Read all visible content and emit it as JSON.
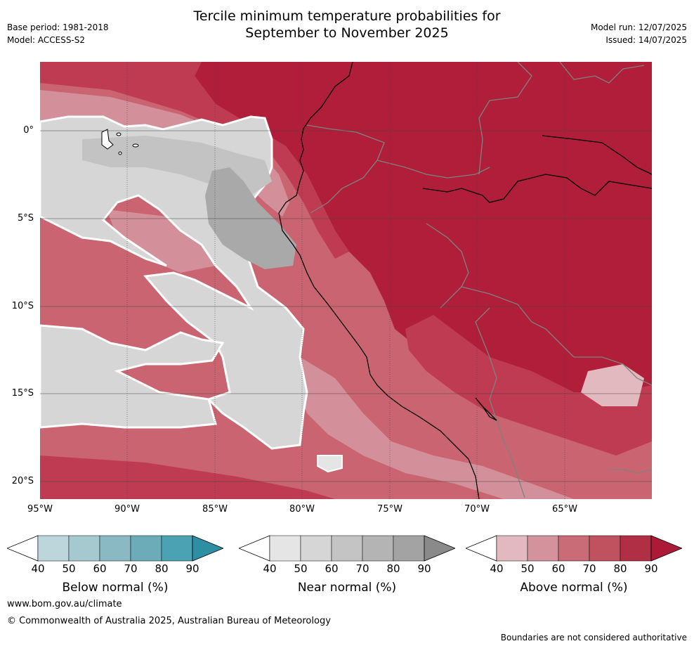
{
  "header": {
    "title_line1": "Tercile minimum temperature probabilities for",
    "title_line2": "September to November 2025",
    "base_period": "Base period: 1981-2018",
    "model": "Model: ACCESS-S2",
    "model_run": "Model run: 12/07/2025",
    "issued": "Issued: 14/07/2025"
  },
  "map": {
    "lat_ticks": [
      "0°",
      "5°S",
      "10°S",
      "15°S",
      "20°S"
    ],
    "lon_ticks": [
      "95°W",
      "90°W",
      "85°W",
      "80°W",
      "75°W",
      "70°W",
      "65°W"
    ],
    "category_colors": {
      "above_90": "#b01e3a",
      "above_80": "#bf3b52",
      "above_70": "#c96470",
      "above_60": "#d4909a",
      "above_50": "#e2b9be",
      "near_40": "#e5e5e5",
      "near_50": "#d6d6d6",
      "near_60": "#c3c3c3",
      "near_70": "#a9a9a9"
    }
  },
  "colorbars": [
    {
      "label": "Below normal (%)",
      "ticks": [
        "40",
        "50",
        "60",
        "70",
        "80",
        "90"
      ],
      "colors": [
        "#ffffff",
        "#bcd6dc",
        "#a6c8cf",
        "#8bb9c3",
        "#6bacb8",
        "#4aa2b2",
        "#2e8ea2"
      ]
    },
    {
      "label": "Near normal (%)",
      "ticks": [
        "40",
        "50",
        "60",
        "70",
        "80",
        "90"
      ],
      "colors": [
        "#ffffff",
        "#e5e5e5",
        "#d6d6d6",
        "#c4c4c4",
        "#b4b4b4",
        "#a3a3a3",
        "#8a8a8a"
      ]
    },
    {
      "label": "Above normal (%)",
      "ticks": [
        "40",
        "50",
        "60",
        "70",
        "80",
        "90"
      ],
      "colors": [
        "#ffffff",
        "#e2b9be",
        "#d4939c",
        "#c96c77",
        "#c0515f",
        "#b02f44",
        "#ad1a38"
      ]
    }
  ],
  "footer": {
    "website": "www.bom.gov.au/climate",
    "copyright": "© Commonwealth of Australia 2025, Australian Bureau of Meteorology",
    "disclaimer": "Boundaries are not considered authoritative"
  }
}
